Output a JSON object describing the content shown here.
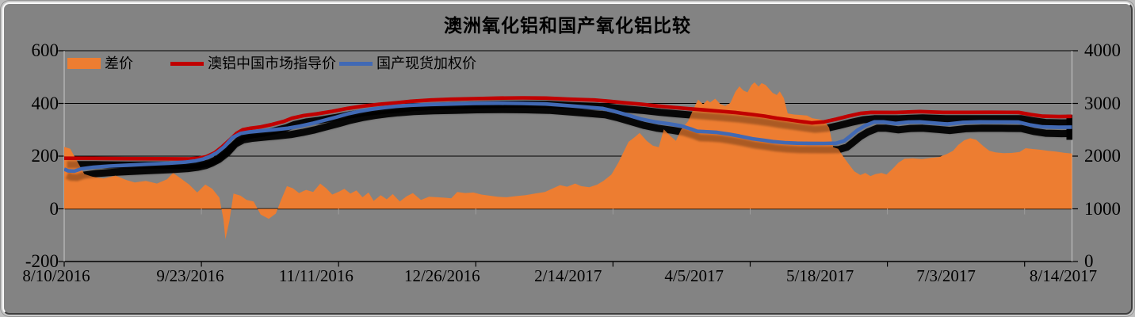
{
  "chart_data": {
    "type": "combo",
    "title": "澳洲氧化铝和国产氧化铝比较",
    "x_axis": {
      "labels": [
        "8/10/2016",
        "9/23/2016",
        "11/11/2016",
        "12/26/2016",
        "2/14/2017",
        "4/5/2017",
        "5/18/2017",
        "7/3/2017",
        "8/14/2017"
      ]
    },
    "y_axis_left": {
      "min": -200,
      "max": 600,
      "tick_values": [
        600,
        400,
        200,
        0,
        -200
      ],
      "tick_labels": [
        "600",
        "400",
        "200",
        "0",
        "-200"
      ]
    },
    "y_axis_right": {
      "min": 0,
      "max": 4000,
      "tick_values": [
        4000,
        3000,
        2000,
        1000,
        0
      ],
      "tick_labels": [
        "4000",
        "3000",
        "2000",
        "1000",
        "0"
      ]
    },
    "legend": [
      {
        "label": "差价",
        "swatch": "area",
        "color": "#ED7D31"
      },
      {
        "label": "澳铝中国市场指导价",
        "swatch": "line",
        "color": "#C00000"
      },
      {
        "label": "国产现货加权价",
        "swatch": "line",
        "color": "#4169B4"
      }
    ],
    "colors": {
      "plot_background": "#838383",
      "frame": "#C9C9C9",
      "gridline": "#000000",
      "axis_border": "#C9C9C9",
      "shadow": "#000000"
    },
    "series": [
      {
        "name": "差价",
        "id": "spread",
        "type": "area",
        "axis": "left",
        "color": "#ED7D31",
        "points": [
          [
            0,
            235
          ],
          [
            0.006,
            228
          ],
          [
            0.013,
            180
          ],
          [
            0.02,
            132
          ],
          [
            0.028,
            122
          ],
          [
            0.039,
            115
          ],
          [
            0.051,
            126
          ],
          [
            0.061,
            110
          ],
          [
            0.07,
            100
          ],
          [
            0.081,
            106
          ],
          [
            0.092,
            96
          ],
          [
            0.102,
            112
          ],
          [
            0.108,
            136
          ],
          [
            0.114,
            120
          ],
          [
            0.124,
            92
          ],
          [
            0.132,
            62
          ],
          [
            0.14,
            92
          ],
          [
            0.147,
            76
          ],
          [
            0.154,
            42
          ],
          [
            0.158,
            -40
          ],
          [
            0.16,
            -115
          ],
          [
            0.164,
            -45
          ],
          [
            0.168,
            58
          ],
          [
            0.175,
            50
          ],
          [
            0.181,
            34
          ],
          [
            0.188,
            28
          ],
          [
            0.195,
            -22
          ],
          [
            0.203,
            -38
          ],
          [
            0.21,
            -18
          ],
          [
            0.215,
            32
          ],
          [
            0.221,
            86
          ],
          [
            0.227,
            78
          ],
          [
            0.233,
            60
          ],
          [
            0.24,
            72
          ],
          [
            0.247,
            64
          ],
          [
            0.254,
            96
          ],
          [
            0.26,
            78
          ],
          [
            0.266,
            54
          ],
          [
            0.273,
            66
          ],
          [
            0.278,
            76
          ],
          [
            0.284,
            58
          ],
          [
            0.29,
            70
          ],
          [
            0.296,
            44
          ],
          [
            0.302,
            62
          ],
          [
            0.307,
            30
          ],
          [
            0.314,
            52
          ],
          [
            0.32,
            36
          ],
          [
            0.326,
            56
          ],
          [
            0.333,
            28
          ],
          [
            0.34,
            48
          ],
          [
            0.346,
            60
          ],
          [
            0.354,
            34
          ],
          [
            0.362,
            46
          ],
          [
            0.37,
            44
          ],
          [
            0.378,
            42
          ],
          [
            0.384,
            40
          ],
          [
            0.39,
            64
          ],
          [
            0.398,
            60
          ],
          [
            0.406,
            62
          ],
          [
            0.414,
            54
          ],
          [
            0.422,
            50
          ],
          [
            0.43,
            46
          ],
          [
            0.439,
            44
          ],
          [
            0.448,
            48
          ],
          [
            0.458,
            52
          ],
          [
            0.467,
            58
          ],
          [
            0.477,
            64
          ],
          [
            0.485,
            78
          ],
          [
            0.492,
            90
          ],
          [
            0.499,
            84
          ],
          [
            0.507,
            96
          ],
          [
            0.513,
            86
          ],
          [
            0.521,
            82
          ],
          [
            0.529,
            92
          ],
          [
            0.535,
            106
          ],
          [
            0.543,
            130
          ],
          [
            0.55,
            176
          ],
          [
            0.56,
            254
          ],
          [
            0.566,
            272
          ],
          [
            0.571,
            288
          ],
          [
            0.578,
            258
          ],
          [
            0.584,
            240
          ],
          [
            0.59,
            234
          ],
          [
            0.595,
            302
          ],
          [
            0.601,
            278
          ],
          [
            0.607,
            258
          ],
          [
            0.612,
            300
          ],
          [
            0.619,
            332
          ],
          [
            0.625,
            384
          ],
          [
            0.629,
            414
          ],
          [
            0.634,
            396
          ],
          [
            0.638,
            412
          ],
          [
            0.641,
            404
          ],
          [
            0.646,
            418
          ],
          [
            0.651,
            398
          ],
          [
            0.656,
            390
          ],
          [
            0.661,
            402
          ],
          [
            0.666,
            444
          ],
          [
            0.67,
            465
          ],
          [
            0.674,
            449
          ],
          [
            0.678,
            442
          ],
          [
            0.682,
            470
          ],
          [
            0.685,
            480
          ],
          [
            0.689,
            464
          ],
          [
            0.692,
            477
          ],
          [
            0.696,
            470
          ],
          [
            0.7,
            453
          ],
          [
            0.703,
            440
          ],
          [
            0.707,
            432
          ],
          [
            0.71,
            446
          ],
          [
            0.714,
            420
          ],
          [
            0.718,
            362
          ],
          [
            0.724,
            358
          ],
          [
            0.731,
            356
          ],
          [
            0.737,
            354
          ],
          [
            0.742,
            344
          ],
          [
            0.748,
            340
          ],
          [
            0.754,
            336
          ],
          [
            0.759,
            308
          ],
          [
            0.763,
            234
          ],
          [
            0.768,
            228
          ],
          [
            0.772,
            204
          ],
          [
            0.778,
            172
          ],
          [
            0.784,
            142
          ],
          [
            0.79,
            128
          ],
          [
            0.795,
            136
          ],
          [
            0.8,
            124
          ],
          [
            0.805,
            132
          ],
          [
            0.811,
            136
          ],
          [
            0.816,
            130
          ],
          [
            0.822,
            152
          ],
          [
            0.828,
            176
          ],
          [
            0.834,
            190
          ],
          [
            0.842,
            192
          ],
          [
            0.851,
            189
          ],
          [
            0.86,
            193
          ],
          [
            0.868,
            196
          ],
          [
            0.876,
            208
          ],
          [
            0.882,
            220
          ],
          [
            0.887,
            242
          ],
          [
            0.893,
            260
          ],
          [
            0.899,
            268
          ],
          [
            0.905,
            262
          ],
          [
            0.912,
            238
          ],
          [
            0.918,
            220
          ],
          [
            0.924,
            214
          ],
          [
            0.932,
            211
          ],
          [
            0.94,
            212
          ],
          [
            0.948,
            216
          ],
          [
            0.954,
            230
          ],
          [
            0.961,
            227
          ],
          [
            0.969,
            224
          ],
          [
            0.976,
            220
          ],
          [
            0.984,
            217
          ],
          [
            0.992,
            213
          ],
          [
            1,
            210
          ]
        ]
      },
      {
        "name": "澳铝中国市场指导价",
        "id": "aus-guide-price",
        "type": "line",
        "axis": "right",
        "color": "#C00000",
        "shadow": true,
        "points": [
          [
            0,
            1960
          ],
          [
            0.029,
            1958
          ],
          [
            0.061,
            1952
          ],
          [
            0.092,
            1950
          ],
          [
            0.124,
            1948
          ],
          [
            0.133,
            1960
          ],
          [
            0.141,
            1990
          ],
          [
            0.149,
            2060
          ],
          [
            0.157,
            2180
          ],
          [
            0.165,
            2320
          ],
          [
            0.171,
            2430
          ],
          [
            0.177,
            2500
          ],
          [
            0.185,
            2530
          ],
          [
            0.195,
            2555
          ],
          [
            0.206,
            2600
          ],
          [
            0.218,
            2660
          ],
          [
            0.226,
            2720
          ],
          [
            0.238,
            2770
          ],
          [
            0.25,
            2800
          ],
          [
            0.266,
            2850
          ],
          [
            0.281,
            2905
          ],
          [
            0.297,
            2950
          ],
          [
            0.313,
            2985
          ],
          [
            0.329,
            3010
          ],
          [
            0.344,
            3040
          ],
          [
            0.364,
            3065
          ],
          [
            0.384,
            3080
          ],
          [
            0.407,
            3090
          ],
          [
            0.431,
            3100
          ],
          [
            0.455,
            3105
          ],
          [
            0.478,
            3100
          ],
          [
            0.502,
            3080
          ],
          [
            0.526,
            3065
          ],
          [
            0.541,
            3040
          ],
          [
            0.557,
            3010
          ],
          [
            0.573,
            2985
          ],
          [
            0.589,
            2950
          ],
          [
            0.604,
            2925
          ],
          [
            0.62,
            2900
          ],
          [
            0.636,
            2875
          ],
          [
            0.652,
            2850
          ],
          [
            0.667,
            2825
          ],
          [
            0.683,
            2790
          ],
          [
            0.695,
            2760
          ],
          [
            0.707,
            2720
          ],
          [
            0.719,
            2690
          ],
          [
            0.73,
            2660
          ],
          [
            0.742,
            2630
          ],
          [
            0.754,
            2650
          ],
          [
            0.766,
            2700
          ],
          [
            0.778,
            2760
          ],
          [
            0.79,
            2810
          ],
          [
            0.801,
            2830
          ],
          [
            0.825,
            2828
          ],
          [
            0.849,
            2845
          ],
          [
            0.872,
            2830
          ],
          [
            0.896,
            2830
          ],
          [
            0.92,
            2832
          ],
          [
            0.947,
            2830
          ],
          [
            0.959,
            2790
          ],
          [
            0.971,
            2758
          ],
          [
            0.987,
            2750
          ],
          [
            1,
            2755
          ]
        ]
      },
      {
        "name": "国产现货加权价",
        "id": "domestic-spot",
        "type": "line",
        "axis": "right",
        "color": "#4169B4",
        "shadow": true,
        "points": [
          [
            0,
            1755
          ],
          [
            0.004,
            1720
          ],
          [
            0.01,
            1715
          ],
          [
            0.017,
            1760
          ],
          [
            0.029,
            1790
          ],
          [
            0.045,
            1812
          ],
          [
            0.065,
            1830
          ],
          [
            0.084,
            1848
          ],
          [
            0.104,
            1865
          ],
          [
            0.12,
            1885
          ],
          [
            0.13,
            1910
          ],
          [
            0.138,
            1945
          ],
          [
            0.144,
            1990
          ],
          [
            0.151,
            2060
          ],
          [
            0.159,
            2180
          ],
          [
            0.167,
            2350
          ],
          [
            0.175,
            2430
          ],
          [
            0.183,
            2455
          ],
          [
            0.195,
            2478
          ],
          [
            0.21,
            2505
          ],
          [
            0.222,
            2530
          ],
          [
            0.234,
            2570
          ],
          [
            0.246,
            2620
          ],
          [
            0.258,
            2680
          ],
          [
            0.27,
            2740
          ],
          [
            0.281,
            2800
          ],
          [
            0.293,
            2850
          ],
          [
            0.305,
            2890
          ],
          [
            0.317,
            2920
          ],
          [
            0.329,
            2945
          ],
          [
            0.344,
            2965
          ],
          [
            0.364,
            2980
          ],
          [
            0.384,
            2990
          ],
          [
            0.407,
            3000
          ],
          [
            0.431,
            3005
          ],
          [
            0.455,
            3000
          ],
          [
            0.478,
            2990
          ],
          [
            0.502,
            2955
          ],
          [
            0.518,
            2930
          ],
          [
            0.534,
            2905
          ],
          [
            0.545,
            2855
          ],
          [
            0.56,
            2775
          ],
          [
            0.573,
            2700
          ],
          [
            0.586,
            2650
          ],
          [
            0.601,
            2610
          ],
          [
            0.612,
            2575
          ],
          [
            0.622,
            2515
          ],
          [
            0.628,
            2470
          ],
          [
            0.64,
            2460
          ],
          [
            0.648,
            2450
          ],
          [
            0.66,
            2415
          ],
          [
            0.67,
            2380
          ],
          [
            0.683,
            2330
          ],
          [
            0.695,
            2300
          ],
          [
            0.703,
            2275
          ],
          [
            0.715,
            2255
          ],
          [
            0.727,
            2245
          ],
          [
            0.738,
            2242
          ],
          [
            0.754,
            2240
          ],
          [
            0.766,
            2245
          ],
          [
            0.774,
            2290
          ],
          [
            0.78,
            2380
          ],
          [
            0.787,
            2490
          ],
          [
            0.795,
            2580
          ],
          [
            0.804,
            2650
          ],
          [
            0.813,
            2650
          ],
          [
            0.825,
            2620
          ],
          [
            0.837,
            2645
          ],
          [
            0.849,
            2650
          ],
          [
            0.865,
            2625
          ],
          [
            0.876,
            2608
          ],
          [
            0.892,
            2640
          ],
          [
            0.908,
            2650
          ],
          [
            0.928,
            2648
          ],
          [
            0.947,
            2645
          ],
          [
            0.959,
            2590
          ],
          [
            0.971,
            2555
          ],
          [
            0.987,
            2548
          ],
          [
            1,
            2550
          ]
        ]
      }
    ]
  }
}
